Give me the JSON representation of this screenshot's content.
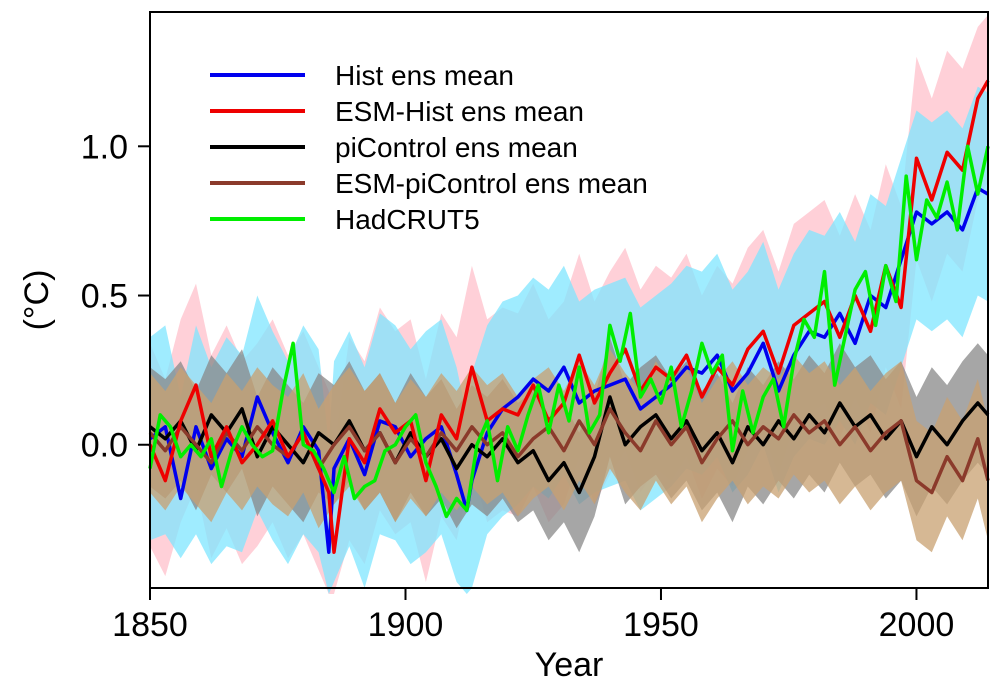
{
  "chart_data": {
    "type": "line",
    "title": "",
    "xlabel": "Year",
    "ylabel": "(°C)",
    "xlim": [
      1850,
      2014
    ],
    "ylim": [
      -0.48,
      1.45
    ],
    "xticks": [
      1850,
      1900,
      1950,
      2000
    ],
    "yticks": [
      0.0,
      0.5,
      1.0
    ],
    "ytick_labels": [
      "0.0",
      "0.5",
      "1.0"
    ],
    "grid": false,
    "legend_position": "top-left",
    "series": [
      {
        "name": "Hist ens mean",
        "color": "#0000ee",
        "band_color": "#7fe5ff",
        "x": [
          1850,
          1853,
          1856,
          1859,
          1862,
          1865,
          1868,
          1871,
          1874,
          1877,
          1880,
          1883,
          1885,
          1886,
          1889,
          1892,
          1895,
          1898,
          1901,
          1904,
          1907,
          1910,
          1912,
          1913,
          1916,
          1919,
          1922,
          1925,
          1928,
          1931,
          1934,
          1937,
          1940,
          1943,
          1946,
          1949,
          1952,
          1955,
          1958,
          1961,
          1964,
          1967,
          1970,
          1973,
          1976,
          1979,
          1982,
          1985,
          1988,
          1991,
          1994,
          1997,
          2000,
          2003,
          2006,
          2009,
          2012,
          2014
        ],
        "y": [
          0.02,
          0.06,
          -0.18,
          0.06,
          -0.08,
          0.02,
          -0.04,
          0.16,
          0.04,
          -0.06,
          0.06,
          -0.02,
          -0.36,
          -0.08,
          0.02,
          -0.1,
          0.08,
          0.06,
          -0.04,
          0.02,
          0.06,
          -0.1,
          -0.22,
          -0.12,
          0.04,
          0.12,
          0.16,
          0.22,
          0.18,
          0.26,
          0.14,
          0.18,
          0.2,
          0.22,
          0.12,
          0.16,
          0.2,
          0.26,
          0.24,
          0.3,
          0.18,
          0.24,
          0.34,
          0.18,
          0.3,
          0.38,
          0.36,
          0.44,
          0.34,
          0.5,
          0.46,
          0.62,
          0.78,
          0.74,
          0.78,
          0.72,
          0.86,
          0.84
        ],
        "band_lower": [
          -0.32,
          -0.3,
          -0.38,
          -0.3,
          -0.4,
          -0.34,
          -0.36,
          -0.22,
          -0.32,
          -0.4,
          -0.3,
          -0.36,
          -0.5,
          -0.46,
          -0.34,
          -0.48,
          -0.3,
          -0.32,
          -0.4,
          -0.36,
          -0.3,
          -0.46,
          -0.5,
          -0.48,
          -0.3,
          -0.24,
          -0.2,
          -0.14,
          -0.18,
          -0.1,
          -0.2,
          -0.16,
          -0.14,
          -0.12,
          -0.22,
          -0.18,
          -0.14,
          -0.08,
          -0.1,
          -0.04,
          -0.16,
          -0.1,
          0.0,
          -0.16,
          -0.04,
          0.02,
          0.0,
          0.08,
          0.0,
          0.14,
          0.1,
          0.26,
          0.42,
          0.38,
          0.42,
          0.36,
          0.5,
          0.48
        ],
        "band_upper": [
          0.36,
          0.4,
          0.16,
          0.4,
          0.26,
          0.36,
          0.3,
          0.5,
          0.38,
          0.28,
          0.4,
          0.32,
          0.0,
          0.28,
          0.38,
          0.26,
          0.44,
          0.4,
          0.32,
          0.38,
          0.42,
          0.26,
          0.1,
          0.24,
          0.4,
          0.48,
          0.5,
          0.56,
          0.52,
          0.6,
          0.48,
          0.52,
          0.54,
          0.56,
          0.46,
          0.5,
          0.54,
          0.6,
          0.58,
          0.64,
          0.52,
          0.58,
          0.68,
          0.52,
          0.64,
          0.72,
          0.7,
          0.78,
          0.68,
          0.84,
          0.8,
          0.96,
          1.12,
          1.08,
          1.12,
          1.06,
          1.2,
          1.18
        ]
      },
      {
        "name": "ESM-Hist ens mean",
        "color": "#ee0000",
        "band_color": "#ffc0cb",
        "x": [
          1850,
          1853,
          1856,
          1859,
          1862,
          1865,
          1868,
          1871,
          1874,
          1877,
          1880,
          1883,
          1885,
          1886,
          1889,
          1892,
          1895,
          1898,
          1901,
          1904,
          1907,
          1910,
          1913,
          1916,
          1919,
          1922,
          1925,
          1928,
          1931,
          1934,
          1937,
          1940,
          1943,
          1946,
          1949,
          1952,
          1955,
          1958,
          1961,
          1964,
          1967,
          1970,
          1973,
          1976,
          1979,
          1982,
          1985,
          1988,
          1991,
          1994,
          1997,
          2000,
          2003,
          2006,
          2009,
          2012,
          2014
        ],
        "y": [
          0.0,
          -0.12,
          0.08,
          0.2,
          -0.04,
          0.06,
          -0.06,
          0.0,
          0.08,
          -0.04,
          0.04,
          -0.08,
          -0.16,
          -0.36,
          0.02,
          -0.06,
          0.12,
          0.04,
          0.08,
          -0.12,
          0.1,
          0.02,
          0.26,
          0.08,
          0.12,
          0.1,
          0.2,
          0.08,
          0.14,
          0.3,
          0.14,
          0.24,
          0.32,
          0.18,
          0.26,
          0.22,
          0.3,
          0.16,
          0.26,
          0.2,
          0.32,
          0.38,
          0.24,
          0.4,
          0.44,
          0.48,
          0.36,
          0.5,
          0.38,
          0.6,
          0.46,
          0.96,
          0.82,
          0.98,
          0.92,
          1.16,
          1.22
        ],
        "band_lower": [
          -0.34,
          -0.44,
          -0.26,
          -0.14,
          -0.38,
          -0.28,
          -0.4,
          -0.34,
          -0.26,
          -0.38,
          -0.3,
          -0.42,
          -0.5,
          -0.5,
          -0.32,
          -0.4,
          -0.22,
          -0.3,
          -0.26,
          -0.46,
          -0.24,
          -0.32,
          -0.08,
          -0.26,
          -0.22,
          -0.24,
          -0.14,
          -0.26,
          -0.2,
          -0.04,
          -0.2,
          -0.1,
          -0.02,
          -0.16,
          -0.08,
          -0.12,
          -0.04,
          -0.18,
          -0.08,
          -0.14,
          -0.02,
          0.04,
          -0.1,
          0.06,
          0.1,
          0.14,
          0.02,
          0.16,
          0.04,
          0.26,
          0.12,
          0.62,
          0.48,
          0.64,
          0.58,
          0.82,
          0.88
        ],
        "band_upper": [
          0.34,
          0.22,
          0.42,
          0.54,
          0.3,
          0.4,
          0.28,
          0.34,
          0.42,
          0.3,
          0.38,
          0.26,
          0.18,
          -0.02,
          0.36,
          0.28,
          0.46,
          0.38,
          0.42,
          0.22,
          0.44,
          0.36,
          0.6,
          0.42,
          0.46,
          0.44,
          0.54,
          0.42,
          0.48,
          0.64,
          0.48,
          0.58,
          0.66,
          0.52,
          0.6,
          0.56,
          0.64,
          0.5,
          0.6,
          0.54,
          0.66,
          0.72,
          0.58,
          0.74,
          0.78,
          0.82,
          0.7,
          0.84,
          0.72,
          0.94,
          0.8,
          1.3,
          1.16,
          1.32,
          1.26,
          1.4,
          1.44
        ]
      },
      {
        "name": "piControl ens mean",
        "color": "#000000",
        "band_color": "#888888",
        "x": [
          1850,
          1853,
          1856,
          1859,
          1862,
          1865,
          1868,
          1871,
          1874,
          1877,
          1880,
          1883,
          1886,
          1889,
          1892,
          1895,
          1898,
          1901,
          1904,
          1907,
          1910,
          1913,
          1916,
          1919,
          1922,
          1925,
          1928,
          1931,
          1934,
          1937,
          1940,
          1943,
          1946,
          1949,
          1952,
          1955,
          1958,
          1961,
          1964,
          1967,
          1970,
          1973,
          1976,
          1979,
          1982,
          1985,
          1988,
          1991,
          1994,
          1997,
          2000,
          2003,
          2006,
          2009,
          2012,
          2014
        ],
        "y": [
          0.06,
          0.02,
          0.08,
          -0.02,
          0.1,
          0.04,
          0.12,
          -0.04,
          0.06,
          0.0,
          -0.06,
          0.04,
          0.0,
          0.08,
          -0.02,
          0.04,
          -0.06,
          0.04,
          -0.04,
          0.02,
          -0.08,
          0.0,
          -0.04,
          0.02,
          -0.06,
          -0.02,
          -0.12,
          -0.06,
          -0.16,
          -0.04,
          0.16,
          0.0,
          0.06,
          0.1,
          0.02,
          0.08,
          -0.02,
          0.04,
          -0.06,
          0.06,
          0.0,
          0.08,
          0.02,
          0.1,
          0.04,
          0.14,
          0.06,
          0.1,
          0.02,
          0.08,
          -0.04,
          0.06,
          0.0,
          0.08,
          0.14,
          0.1
        ],
        "band_lower": [
          -0.14,
          -0.18,
          -0.12,
          -0.22,
          -0.1,
          -0.16,
          -0.08,
          -0.24,
          -0.14,
          -0.2,
          -0.26,
          -0.16,
          -0.2,
          -0.12,
          -0.22,
          -0.16,
          -0.26,
          -0.16,
          -0.24,
          -0.18,
          -0.28,
          -0.2,
          -0.24,
          -0.18,
          -0.26,
          -0.22,
          -0.32,
          -0.26,
          -0.36,
          -0.24,
          -0.04,
          -0.2,
          -0.14,
          -0.1,
          -0.18,
          -0.12,
          -0.22,
          -0.16,
          -0.26,
          -0.14,
          -0.2,
          -0.12,
          -0.18,
          -0.1,
          -0.16,
          -0.06,
          -0.14,
          -0.1,
          -0.18,
          -0.12,
          -0.24,
          -0.14,
          -0.2,
          -0.12,
          -0.06,
          -0.1
        ],
        "band_upper": [
          0.26,
          0.22,
          0.28,
          0.18,
          0.3,
          0.24,
          0.32,
          0.16,
          0.26,
          0.2,
          0.14,
          0.24,
          0.2,
          0.28,
          0.18,
          0.24,
          0.14,
          0.24,
          0.16,
          0.22,
          0.12,
          0.2,
          0.16,
          0.22,
          0.14,
          0.18,
          0.08,
          0.14,
          0.04,
          0.16,
          0.36,
          0.2,
          0.26,
          0.3,
          0.22,
          0.28,
          0.18,
          0.24,
          0.14,
          0.26,
          0.2,
          0.28,
          0.22,
          0.3,
          0.24,
          0.34,
          0.26,
          0.3,
          0.22,
          0.28,
          0.16,
          0.26,
          0.2,
          0.28,
          0.34,
          0.3
        ]
      },
      {
        "name": "ESM-piControl ens mean",
        "color": "#8b3a2b",
        "band_color": "#c8a070",
        "x": [
          1850,
          1853,
          1856,
          1859,
          1862,
          1865,
          1868,
          1871,
          1874,
          1877,
          1880,
          1883,
          1886,
          1889,
          1892,
          1895,
          1898,
          1901,
          1904,
          1907,
          1910,
          1913,
          1916,
          1919,
          1922,
          1925,
          1928,
          1931,
          1934,
          1937,
          1940,
          1943,
          1946,
          1949,
          1952,
          1955,
          1958,
          1961,
          1964,
          1967,
          1970,
          1973,
          1976,
          1979,
          1982,
          1985,
          1988,
          1991,
          1994,
          1997,
          2000,
          2003,
          2006,
          2009,
          2012,
          2014
        ],
        "y": [
          0.04,
          -0.02,
          0.06,
          0.0,
          -0.06,
          0.04,
          -0.02,
          0.06,
          0.0,
          -0.04,
          0.04,
          -0.08,
          0.0,
          0.06,
          -0.02,
          0.04,
          -0.06,
          0.02,
          -0.04,
          0.04,
          -0.02,
          0.06,
          0.0,
          0.04,
          -0.04,
          0.02,
          0.06,
          -0.02,
          0.08,
          0.0,
          0.12,
          0.04,
          -0.02,
          0.08,
          0.0,
          0.06,
          -0.06,
          0.02,
          0.08,
          0.0,
          0.06,
          0.02,
          0.1,
          0.04,
          0.08,
          0.0,
          0.06,
          -0.02,
          0.04,
          0.08,
          -0.12,
          -0.16,
          -0.04,
          -0.12,
          0.02,
          -0.12
        ],
        "band_lower": [
          -0.16,
          -0.22,
          -0.14,
          -0.2,
          -0.26,
          -0.16,
          -0.22,
          -0.14,
          -0.2,
          -0.24,
          -0.16,
          -0.28,
          -0.2,
          -0.14,
          -0.22,
          -0.16,
          -0.26,
          -0.18,
          -0.24,
          -0.16,
          -0.22,
          -0.14,
          -0.2,
          -0.16,
          -0.24,
          -0.18,
          -0.14,
          -0.22,
          -0.12,
          -0.2,
          -0.08,
          -0.16,
          -0.22,
          -0.12,
          -0.2,
          -0.14,
          -0.26,
          -0.18,
          -0.12,
          -0.2,
          -0.14,
          -0.18,
          -0.1,
          -0.16,
          -0.12,
          -0.2,
          -0.14,
          -0.22,
          -0.16,
          -0.12,
          -0.32,
          -0.36,
          -0.24,
          -0.32,
          -0.18,
          -0.32
        ],
        "band_upper": [
          0.24,
          0.18,
          0.26,
          0.2,
          0.14,
          0.24,
          0.18,
          0.26,
          0.2,
          0.16,
          0.24,
          0.12,
          0.2,
          0.26,
          0.18,
          0.24,
          0.14,
          0.22,
          0.16,
          0.24,
          0.18,
          0.26,
          0.2,
          0.24,
          0.16,
          0.22,
          0.26,
          0.18,
          0.28,
          0.2,
          0.32,
          0.24,
          0.18,
          0.28,
          0.2,
          0.26,
          0.14,
          0.22,
          0.28,
          0.2,
          0.26,
          0.22,
          0.3,
          0.24,
          0.28,
          0.2,
          0.26,
          0.18,
          0.24,
          0.28,
          0.08,
          0.04,
          0.16,
          0.08,
          0.22,
          0.08
        ]
      },
      {
        "name": "HadCRUT5",
        "color": "#00ee00",
        "x": [
          1850,
          1852,
          1854,
          1856,
          1858,
          1860,
          1862,
          1864,
          1866,
          1868,
          1870,
          1872,
          1874,
          1876,
          1878,
          1880,
          1882,
          1884,
          1886,
          1888,
          1890,
          1892,
          1894,
          1896,
          1898,
          1900,
          1902,
          1904,
          1906,
          1908,
          1910,
          1912,
          1914,
          1916,
          1918,
          1920,
          1922,
          1924,
          1926,
          1928,
          1930,
          1932,
          1934,
          1936,
          1938,
          1940,
          1942,
          1944,
          1946,
          1948,
          1950,
          1952,
          1954,
          1956,
          1958,
          1960,
          1962,
          1964,
          1966,
          1968,
          1970,
          1972,
          1974,
          1976,
          1978,
          1980,
          1982,
          1984,
          1986,
          1988,
          1990,
          1992,
          1994,
          1996,
          1998,
          2000,
          2002,
          2004,
          2006,
          2008,
          2010,
          2012,
          2014
        ],
        "y": [
          -0.08,
          0.1,
          0.06,
          -0.04,
          0.0,
          -0.04,
          0.02,
          -0.14,
          -0.02,
          0.06,
          0.0,
          -0.04,
          -0.02,
          0.18,
          0.34,
          0.0,
          -0.02,
          -0.08,
          -0.16,
          -0.04,
          -0.18,
          -0.14,
          -0.12,
          -0.02,
          0.0,
          0.06,
          0.1,
          -0.06,
          -0.14,
          -0.24,
          -0.18,
          -0.22,
          0.0,
          0.08,
          -0.12,
          0.06,
          -0.02,
          0.1,
          0.2,
          0.04,
          0.2,
          0.08,
          0.26,
          0.04,
          0.1,
          0.4,
          0.28,
          0.44,
          0.16,
          0.22,
          0.14,
          0.26,
          0.06,
          0.18,
          0.34,
          0.24,
          0.3,
          -0.02,
          0.18,
          0.04,
          0.16,
          0.22,
          0.06,
          0.28,
          0.42,
          0.36,
          0.58,
          0.2,
          0.36,
          0.52,
          0.58,
          0.4,
          0.6,
          0.48,
          0.9,
          0.62,
          0.82,
          0.76,
          0.88,
          0.72,
          1.0,
          0.84,
          1.0
        ]
      }
    ]
  }
}
